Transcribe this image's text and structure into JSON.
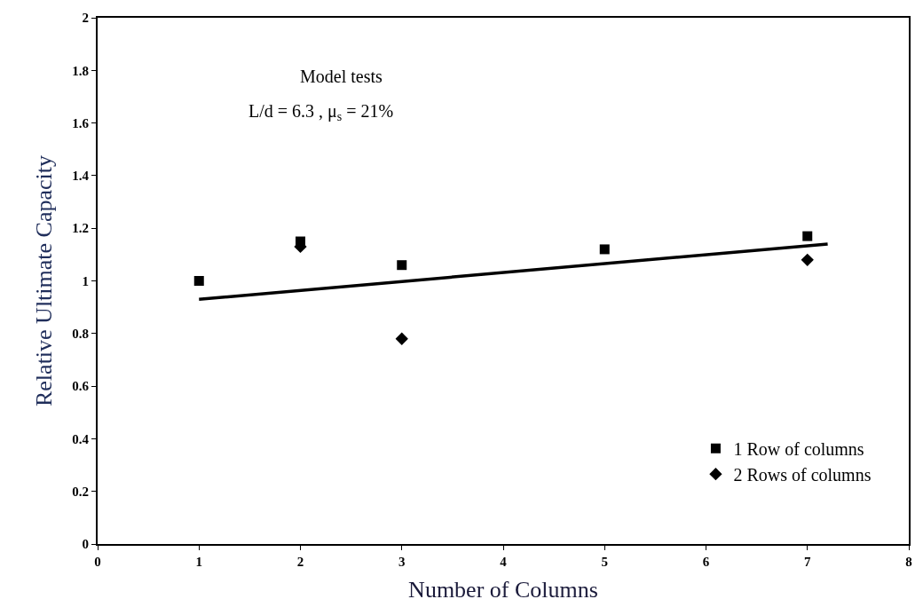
{
  "chart_data": {
    "type": "scatter",
    "xlabel": "Number of Columns",
    "ylabel": "Relative Ultimate Capacity",
    "annotations": [
      "Model tests",
      "L/d = 6.3 , μ$_{s}$ = 21%"
    ],
    "series": [
      {
        "name": "1 Row of columns",
        "color": "#000000",
        "marker": "square",
        "x": [
          1,
          2,
          3,
          5,
          7
        ],
        "values": [
          1.0,
          1.15,
          1.06,
          1.12,
          1.17
        ]
      },
      {
        "name": "2 Rows of columns",
        "color": "#000000",
        "marker": "diamond",
        "x": [
          2,
          3,
          7
        ],
        "values": [
          1.13,
          0.78,
          1.08
        ]
      },
      {
        "type": "line",
        "color": "#000000",
        "x": [
          1,
          7.2
        ],
        "values": [
          0.93,
          1.14
        ]
      }
    ],
    "xlim": [
      0,
      8
    ],
    "xticks": [
      0,
      1,
      2,
      3,
      4,
      5,
      6,
      7,
      8
    ],
    "ylim": [
      0,
      2
    ],
    "yticks": [
      0,
      0.2,
      0.4,
      0.6,
      0.8,
      1,
      1.2,
      1.4,
      1.6,
      1.8,
      2
    ],
    "grid": false,
    "legend": "bottom right"
  }
}
